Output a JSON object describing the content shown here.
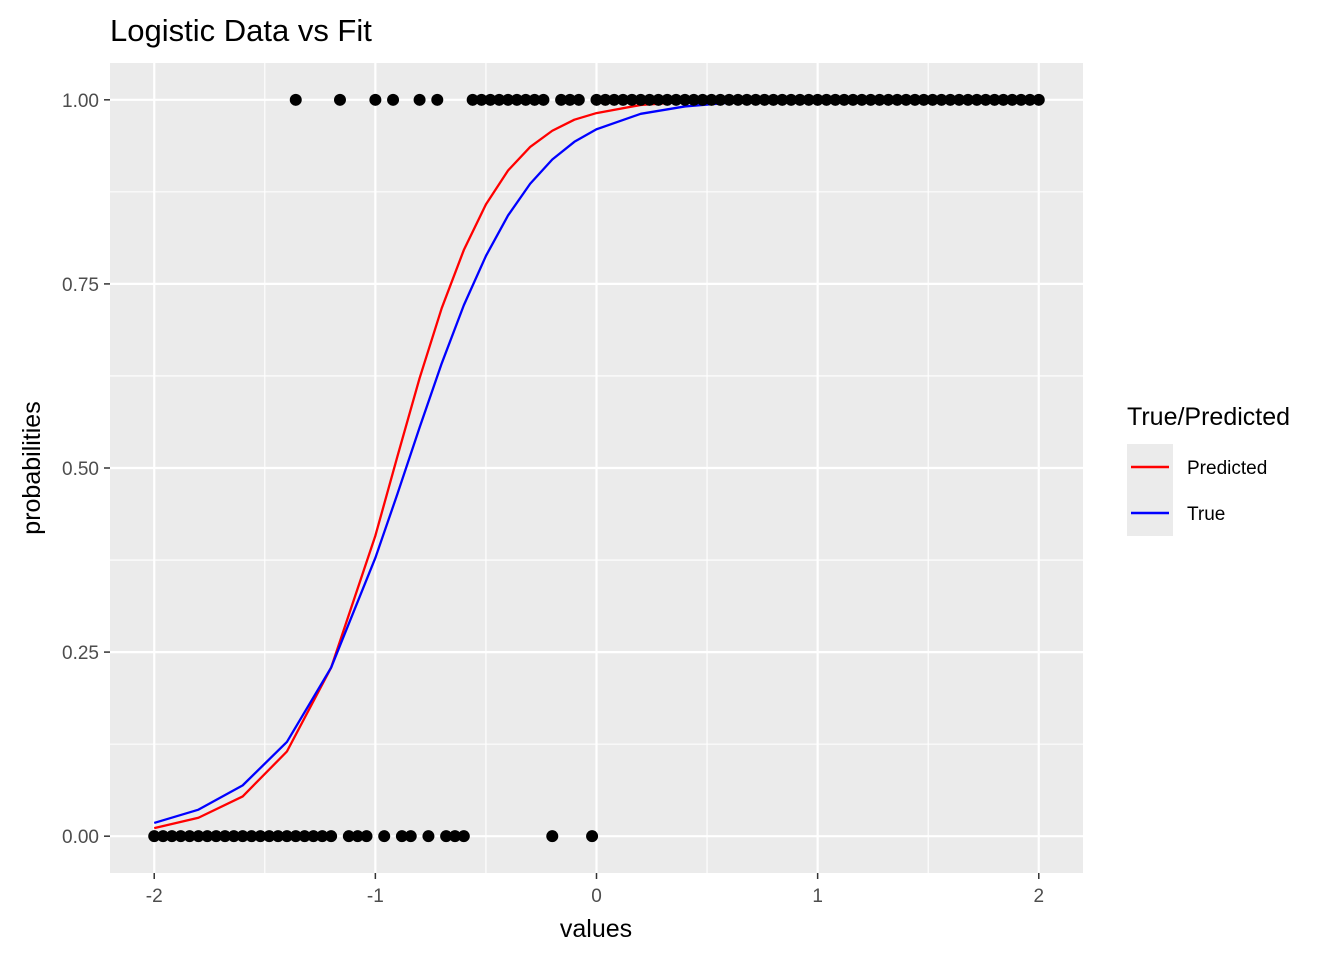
{
  "chart_data": {
    "type": "scatter",
    "title": "Logistic Data vs Fit",
    "xlabel": "values",
    "ylabel": "probabilities",
    "xlim": [
      -2.2,
      2.2
    ],
    "ylim": [
      -0.05,
      1.05
    ],
    "x_ticks": [
      -2,
      -1,
      0,
      1,
      2
    ],
    "x_tick_labels": [
      "-2",
      "-1",
      "0",
      "1",
      "2"
    ],
    "y_ticks": [
      0,
      0.25,
      0.5,
      0.75,
      1
    ],
    "y_tick_labels": [
      "0.00",
      "0.25",
      "0.50",
      "0.75",
      "1.00"
    ],
    "grid": true,
    "legend": {
      "title": "True/Predicted",
      "placement": "right",
      "entries": [
        {
          "label": "Predicted",
          "color": "#ff0000"
        },
        {
          "label": "True",
          "color": "#0000ff"
        }
      ]
    },
    "points": {
      "color": "#000000",
      "y0_x": [
        -2.0,
        -1.96,
        -1.92,
        -1.88,
        -1.84,
        -1.8,
        -1.76,
        -1.72,
        -1.68,
        -1.64,
        -1.6,
        -1.56,
        -1.52,
        -1.48,
        -1.44,
        -1.4,
        -1.36,
        -1.32,
        -1.28,
        -1.24,
        -1.2,
        -1.12,
        -1.08,
        -1.04,
        -0.96,
        -0.88,
        -0.84,
        -0.76,
        -0.68,
        -0.64,
        -0.6,
        -0.2,
        -0.02
      ],
      "y1_x": [
        -1.36,
        -1.16,
        -1.0,
        -0.92,
        -0.8,
        -0.72,
        -0.56,
        -0.52,
        -0.48,
        -0.44,
        -0.4,
        -0.36,
        -0.32,
        -0.28,
        -0.24,
        -0.16,
        -0.12,
        -0.08,
        0.0,
        0.04,
        0.08,
        0.12,
        0.16,
        0.2,
        0.24,
        0.28,
        0.32,
        0.36,
        0.4,
        0.44,
        0.48,
        0.52,
        0.56,
        0.6,
        0.64,
        0.68,
        0.72,
        0.76,
        0.8,
        0.84,
        0.88,
        0.92,
        0.96,
        1.0,
        1.04,
        1.08,
        1.12,
        1.16,
        1.2,
        1.24,
        1.28,
        1.32,
        1.36,
        1.4,
        1.44,
        1.48,
        1.52,
        1.56,
        1.6,
        1.64,
        1.68,
        1.72,
        1.76,
        1.8,
        1.84,
        1.88,
        1.92,
        1.96,
        2.0
      ]
    },
    "series": [
      {
        "name": "Predicted",
        "color": "#ff0000",
        "x": [
          -2.0,
          -1.8,
          -1.6,
          -1.4,
          -1.2,
          -1.0,
          -0.9,
          -0.8,
          -0.7,
          -0.6,
          -0.5,
          -0.4,
          -0.3,
          -0.2,
          -0.1,
          0.0,
          0.2,
          0.4,
          0.6,
          0.8,
          1.0,
          1.2,
          1.5,
          2.0
        ],
        "y": [
          0.011,
          0.025,
          0.054,
          0.115,
          0.229,
          0.408,
          0.516,
          0.622,
          0.717,
          0.796,
          0.858,
          0.904,
          0.936,
          0.958,
          0.973,
          0.982,
          0.993,
          0.997,
          0.999,
          0.9995,
          0.9998,
          0.9999,
          1.0,
          1.0
        ]
      },
      {
        "name": "True",
        "color": "#0000ff",
        "x": [
          -2.0,
          -1.8,
          -1.6,
          -1.4,
          -1.2,
          -1.0,
          -0.9,
          -0.8,
          -0.7,
          -0.6,
          -0.5,
          -0.4,
          -0.3,
          -0.2,
          -0.1,
          0.0,
          0.2,
          0.4,
          0.6,
          0.8,
          1.0,
          1.2,
          1.5,
          2.0
        ],
        "y": [
          0.018,
          0.036,
          0.069,
          0.128,
          0.229,
          0.378,
          0.465,
          0.555,
          0.642,
          0.721,
          0.788,
          0.843,
          0.886,
          0.919,
          0.943,
          0.96,
          0.981,
          0.991,
          0.996,
          0.998,
          0.999,
          0.9996,
          0.9999,
          1.0
        ]
      }
    ]
  }
}
